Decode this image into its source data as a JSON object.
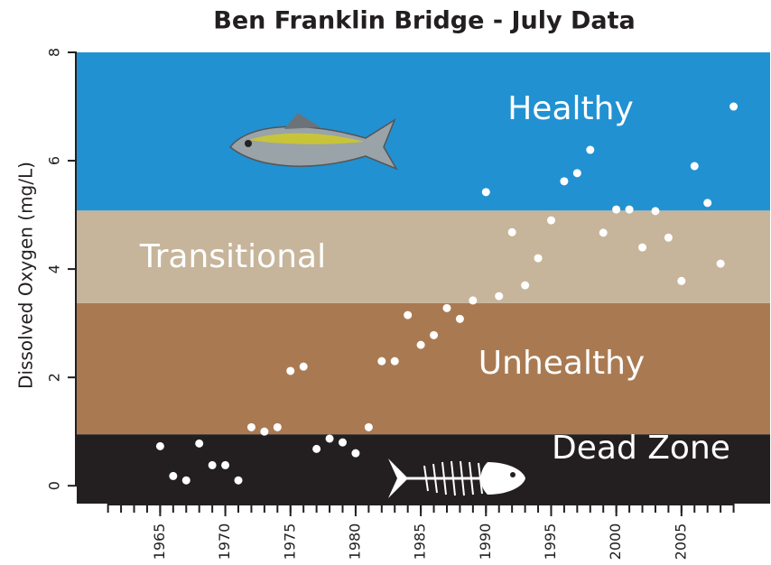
{
  "chart_data": {
    "type": "scatter",
    "title": "Ben Franklin Bridge - July Data",
    "y_label": "Dissolved Oxygen (mg/L)",
    "x": [
      1965,
      1966,
      1967,
      1968,
      1969,
      1970,
      1971,
      1972,
      1973,
      1974,
      1975,
      1976,
      1977,
      1978,
      1979,
      1980,
      1981,
      1982,
      1983,
      1984,
      1985,
      1986,
      1987,
      1988,
      1989,
      1990,
      1991,
      1992,
      1993,
      1994,
      1995,
      1996,
      1997,
      1998,
      1999,
      2000,
      2001,
      2002,
      2003,
      2004,
      2005,
      2006,
      2007,
      2008,
      2009
    ],
    "values": [
      0.73,
      0.18,
      0.1,
      0.78,
      0.38,
      0.38,
      0.1,
      1.08,
      1.0,
      1.08,
      2.12,
      2.2,
      0.68,
      0.87,
      0.8,
      0.6,
      1.08,
      2.3,
      2.3,
      3.15,
      2.6,
      2.78,
      3.28,
      3.08,
      3.42,
      5.42,
      3.5,
      4.68,
      3.7,
      4.2,
      4.9,
      5.62,
      5.77,
      6.2,
      4.67,
      5.1,
      5.1,
      4.4,
      5.07,
      4.58,
      3.78,
      5.9,
      5.22,
      4.1,
      7.0
    ],
    "color": "#ffffff",
    "bands": [
      {
        "name": "Dead Zone",
        "color": "#231f20",
        "from": -0.33,
        "to": 0.95
      },
      {
        "name": "Unhealthy",
        "color": "#a97a52",
        "from": 0.95,
        "to": 3.37
      },
      {
        "name": "Transitional",
        "color": "#c6b59a",
        "from": 3.37,
        "to": 5.08
      },
      {
        "name": "Healthy",
        "color": "#2191d2",
        "from": 5.08,
        "to": 8
      }
    ],
    "xlim": [
      1958.6,
      2011.8
    ],
    "ylim": [
      -0.33,
      8
    ],
    "xticks": [
      1965,
      1970,
      1975,
      1980,
      1985,
      1990,
      1995,
      2000,
      2005
    ],
    "xticks_minor": [
      1961,
      1962,
      1963,
      1964,
      1965,
      1966,
      1967,
      1968,
      1969,
      1970,
      1971,
      1972,
      1973,
      1974,
      1975,
      1976,
      1977,
      1978,
      1979,
      1980,
      1981,
      1982,
      1983,
      1984,
      1985,
      1986,
      1987,
      1988,
      1989,
      1990,
      1991,
      1992,
      1993,
      1994,
      1995,
      1996,
      1997,
      1998,
      1999,
      2000,
      2001,
      2002,
      2003,
      2004,
      2005,
      2006,
      2007,
      2008,
      2009
    ],
    "yticks": [
      0,
      2,
      4,
      6,
      8
    ]
  }
}
